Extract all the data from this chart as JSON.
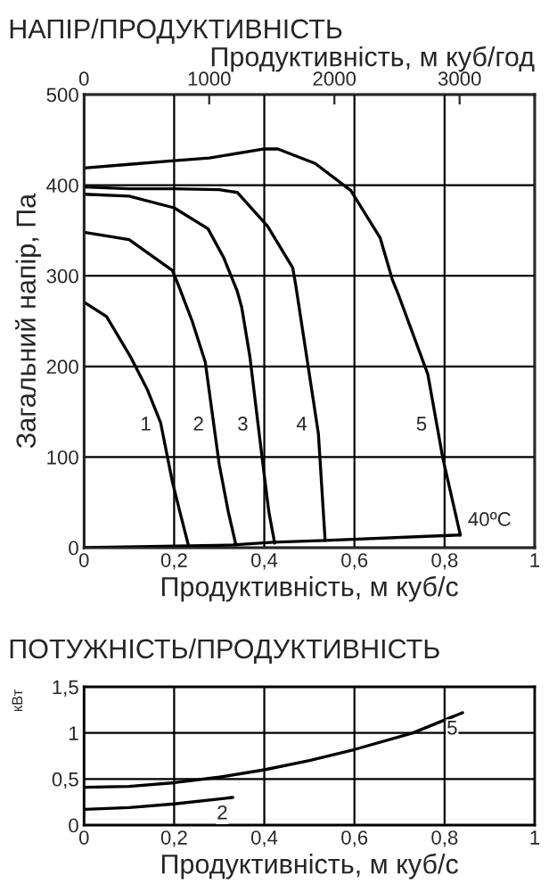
{
  "chart_data": [
    {
      "type": "line",
      "title": "НАПІР/ПРОДУКТИВНІСТЬ",
      "xlabel": "Продуктивність, м куб/с",
      "ylabel": "Загальний напір, Па",
      "x2label": "Продуктивність, м куб/год",
      "xlim": [
        0,
        1
      ],
      "xticks": [
        0,
        {
          "value": 0.2,
          "label": "0,2"
        },
        {
          "value": 0.4,
          "label": "0,4"
        },
        {
          "value": 0.6,
          "label": "0,6"
        },
        {
          "value": 0.8,
          "label": "0,8"
        },
        1
      ],
      "x2lim": [
        0,
        3600
      ],
      "x2ticks": [
        0,
        1000,
        2000,
        3000
      ],
      "ylim": [
        0,
        500
      ],
      "yticks": [
        0,
        100,
        200,
        300,
        400,
        500
      ],
      "grid": true,
      "legend": false,
      "marker": "none",
      "line_style": "solid",
      "series": [
        {
          "name": "1",
          "color": "#000000",
          "x": [
            0,
            0.05,
            0.104,
            0.14,
            0.17,
            0.196,
            0.215,
            0.233
          ],
          "values": [
            271,
            255,
            210,
            175,
            138,
            73,
            35,
            0
          ]
        },
        {
          "name": "2",
          "color": "#000000",
          "x": [
            0,
            0.1,
            0.196,
            0.21,
            0.24,
            0.269,
            0.3,
            0.32,
            0.337
          ],
          "values": [
            348,
            340,
            306,
            289,
            250,
            205,
            92,
            40,
            3
          ]
        },
        {
          "name": "3",
          "color": "#000000",
          "x": [
            0,
            0.1,
            0.2,
            0.275,
            0.31,
            0.34,
            0.35,
            0.368,
            0.395,
            0.41,
            0.423
          ],
          "values": [
            390,
            388,
            375,
            352,
            320,
            283,
            265,
            211,
            100,
            40,
            5
          ]
        },
        {
          "name": "4",
          "color": "#000000",
          "x": [
            0,
            0.1,
            0.2,
            0.3,
            0.34,
            0.407,
            0.463,
            0.47,
            0.49,
            0.52,
            0.535
          ],
          "values": [
            398,
            396,
            396,
            395,
            392,
            355,
            309,
            289,
            224,
            126,
            8
          ]
        },
        {
          "name": "5",
          "color": "#000000",
          "x": [
            0,
            0.1,
            0.2,
            0.278,
            0.4,
            0.43,
            0.513,
            0.592,
            0.657,
            0.684,
            0.697,
            0.763,
            0.796,
            0.835
          ],
          "values": [
            419,
            423,
            427,
            430,
            440,
            440,
            424,
            394,
            342,
            296,
            280,
            191,
            99,
            14
          ]
        },
        {
          "name": "40ºC",
          "color": "#000000",
          "x": [
            0,
            0.235,
            0.33,
            0.42,
            0.535,
            0.835
          ],
          "values": [
            0,
            2,
            3,
            6,
            8,
            14
          ]
        }
      ]
    },
    {
      "type": "line",
      "title": "ПОТУЖНІСТЬ/ПРОДУКТИВНІСТЬ",
      "xlabel": "Продуктивність, м куб/с",
      "ylabel": "кВт",
      "xlim": [
        0,
        1
      ],
      "xticks": [
        0,
        {
          "value": 0.2,
          "label": "0,2"
        },
        {
          "value": 0.4,
          "label": "0,4"
        },
        {
          "value": 0.6,
          "label": "0,6"
        },
        {
          "value": 0.8,
          "label": "0,8"
        },
        1
      ],
      "ylim": [
        0,
        1.5
      ],
      "yticks": [
        0,
        {
          "value": 0.5,
          "label": "0,5"
        },
        1,
        {
          "value": 1.5,
          "label": "1,5"
        }
      ],
      "grid": true,
      "legend": false,
      "marker": "none",
      "line_style": "solid",
      "series": [
        {
          "name": "5",
          "color": "#000000",
          "x": [
            0,
            0.1,
            0.2,
            0.3,
            0.4,
            0.5,
            0.6,
            0.73,
            0.84
          ],
          "values": [
            0.41,
            0.42,
            0.46,
            0.52,
            0.6,
            0.7,
            0.82,
            1.0,
            1.22
          ]
        },
        {
          "name": "2",
          "color": "#000000",
          "x": [
            0,
            0.1,
            0.2,
            0.33
          ],
          "values": [
            0.17,
            0.19,
            0.23,
            0.3
          ]
        }
      ]
    }
  ]
}
